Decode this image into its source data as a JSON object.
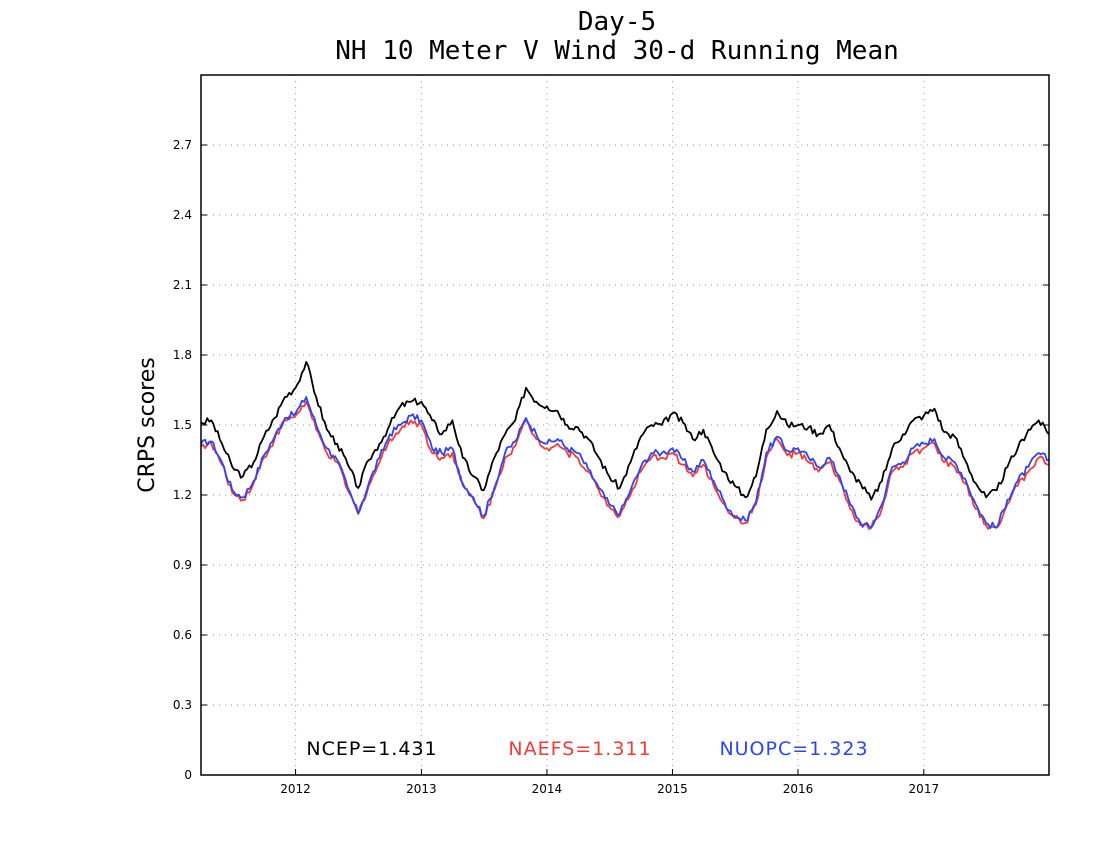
{
  "chart_data": {
    "type": "line",
    "title_line1": "Day-5",
    "title_line2": "NH 10 Meter V Wind 30-d Running Mean",
    "ylabel": "CRPS scores",
    "xlabel": "",
    "xlim": [
      "2011-04-01",
      "2017-12-31"
    ],
    "ylim": [
      0,
      3.0
    ],
    "yticks": [
      "0",
      "0.3",
      "0.6",
      "0.9",
      "1.2",
      "1.5",
      "1.8",
      "2.1",
      "2.4",
      "2.7"
    ],
    "ytick_values": [
      0,
      0.3,
      0.6,
      0.9,
      1.2,
      1.5,
      1.8,
      2.1,
      2.4,
      2.7
    ],
    "xticks": [
      "2012",
      "2013",
      "2014",
      "2015",
      "2016",
      "2017"
    ],
    "xtick_dates": [
      "2012-01-01",
      "2013-01-01",
      "2014-01-01",
      "2015-01-01",
      "2016-01-01",
      "2017-01-01"
    ],
    "grid": true,
    "legend_position": "bottom-inside",
    "series": [
      {
        "name": "NCEP",
        "label": "NCEP=1.431",
        "color": "#000000",
        "x": [
          "2011-04-01",
          "2011-05-01",
          "2011-06-01",
          "2011-07-01",
          "2011-08-01",
          "2011-09-01",
          "2011-10-01",
          "2011-11-01",
          "2011-12-01",
          "2012-01-01",
          "2012-02-01",
          "2012-03-01",
          "2012-04-01",
          "2012-05-01",
          "2012-06-01",
          "2012-07-01",
          "2012-08-01",
          "2012-09-01",
          "2012-10-01",
          "2012-11-01",
          "2012-12-01",
          "2013-01-01",
          "2013-02-01",
          "2013-03-01",
          "2013-04-01",
          "2013-05-01",
          "2013-06-01",
          "2013-07-01",
          "2013-08-01",
          "2013-09-01",
          "2013-10-01",
          "2013-11-01",
          "2013-12-01",
          "2014-01-01",
          "2014-02-01",
          "2014-03-01",
          "2014-04-01",
          "2014-05-01",
          "2014-06-01",
          "2014-07-01",
          "2014-08-01",
          "2014-09-01",
          "2014-10-01",
          "2014-11-01",
          "2014-12-01",
          "2015-01-01",
          "2015-02-01",
          "2015-03-01",
          "2015-04-01",
          "2015-05-01",
          "2015-06-01",
          "2015-07-01",
          "2015-08-01",
          "2015-09-01",
          "2015-10-01",
          "2015-11-01",
          "2015-12-01",
          "2016-01-01",
          "2016-02-01",
          "2016-03-01",
          "2016-04-01",
          "2016-05-01",
          "2016-06-01",
          "2016-07-01",
          "2016-08-01",
          "2016-09-01",
          "2016-10-01",
          "2016-11-01",
          "2016-12-01",
          "2017-01-01",
          "2017-02-01",
          "2017-03-01",
          "2017-04-01",
          "2017-05-01",
          "2017-06-01",
          "2017-07-01",
          "2017-08-01",
          "2017-09-01",
          "2017-10-01",
          "2017-11-01",
          "2017-12-01",
          "2017-12-31"
        ],
        "values": [
          1.51,
          1.52,
          1.42,
          1.32,
          1.28,
          1.34,
          1.45,
          1.53,
          1.62,
          1.66,
          1.77,
          1.62,
          1.48,
          1.42,
          1.33,
          1.23,
          1.35,
          1.42,
          1.5,
          1.58,
          1.6,
          1.6,
          1.52,
          1.46,
          1.52,
          1.36,
          1.28,
          1.22,
          1.36,
          1.46,
          1.52,
          1.66,
          1.6,
          1.58,
          1.56,
          1.5,
          1.49,
          1.44,
          1.36,
          1.28,
          1.23,
          1.34,
          1.45,
          1.5,
          1.5,
          1.55,
          1.51,
          1.44,
          1.48,
          1.38,
          1.3,
          1.24,
          1.19,
          1.28,
          1.48,
          1.56,
          1.5,
          1.5,
          1.49,
          1.46,
          1.5,
          1.4,
          1.3,
          1.25,
          1.18,
          1.26,
          1.4,
          1.46,
          1.52,
          1.54,
          1.57,
          1.47,
          1.45,
          1.35,
          1.25,
          1.19,
          1.22,
          1.32,
          1.4,
          1.48,
          1.52,
          1.46
        ]
      },
      {
        "name": "NAEFS",
        "label": "NAEFS=1.311",
        "color": "#f03c3c",
        "x": [
          "2011-04-01",
          "2011-05-01",
          "2011-06-01",
          "2011-07-01",
          "2011-08-01",
          "2011-09-01",
          "2011-10-01",
          "2011-11-01",
          "2011-12-01",
          "2012-01-01",
          "2012-02-01",
          "2012-03-01",
          "2012-04-01",
          "2012-05-01",
          "2012-06-01",
          "2012-07-01",
          "2012-08-01",
          "2012-09-01",
          "2012-10-01",
          "2012-11-01",
          "2012-12-01",
          "2013-01-01",
          "2013-02-01",
          "2013-03-01",
          "2013-04-01",
          "2013-05-01",
          "2013-06-01",
          "2013-07-01",
          "2013-08-01",
          "2013-09-01",
          "2013-10-01",
          "2013-11-01",
          "2013-12-01",
          "2014-01-01",
          "2014-02-01",
          "2014-03-01",
          "2014-04-01",
          "2014-05-01",
          "2014-06-01",
          "2014-07-01",
          "2014-08-01",
          "2014-09-01",
          "2014-10-01",
          "2014-11-01",
          "2014-12-01",
          "2015-01-01",
          "2015-02-01",
          "2015-03-01",
          "2015-04-01",
          "2015-05-01",
          "2015-06-01",
          "2015-07-01",
          "2015-08-01",
          "2015-09-01",
          "2015-10-01",
          "2015-11-01",
          "2015-12-01",
          "2016-01-01",
          "2016-02-01",
          "2016-03-01",
          "2016-04-01",
          "2016-05-01",
          "2016-06-01",
          "2016-07-01",
          "2016-08-01",
          "2016-09-01",
          "2016-10-01",
          "2016-11-01",
          "2016-12-01",
          "2017-01-01",
          "2017-02-01",
          "2017-03-01",
          "2017-04-01",
          "2017-05-01",
          "2017-06-01",
          "2017-07-01",
          "2017-08-01",
          "2017-09-01",
          "2017-10-01",
          "2017-11-01",
          "2017-12-01",
          "2017-12-31"
        ],
        "values": [
          1.41,
          1.42,
          1.33,
          1.21,
          1.18,
          1.25,
          1.36,
          1.44,
          1.52,
          1.54,
          1.6,
          1.48,
          1.38,
          1.34,
          1.22,
          1.12,
          1.24,
          1.34,
          1.44,
          1.48,
          1.52,
          1.5,
          1.38,
          1.36,
          1.38,
          1.24,
          1.18,
          1.1,
          1.22,
          1.36,
          1.41,
          1.52,
          1.44,
          1.4,
          1.42,
          1.38,
          1.36,
          1.3,
          1.22,
          1.15,
          1.11,
          1.2,
          1.3,
          1.36,
          1.36,
          1.38,
          1.33,
          1.28,
          1.33,
          1.24,
          1.16,
          1.1,
          1.08,
          1.16,
          1.36,
          1.44,
          1.37,
          1.38,
          1.34,
          1.3,
          1.34,
          1.26,
          1.14,
          1.07,
          1.06,
          1.14,
          1.3,
          1.32,
          1.38,
          1.4,
          1.42,
          1.34,
          1.32,
          1.25,
          1.14,
          1.07,
          1.06,
          1.16,
          1.24,
          1.3,
          1.36,
          1.33
        ]
      },
      {
        "name": "NUOPC",
        "label": "NUOPC=1.323",
        "color": "#2d46f0",
        "x": [
          "2011-04-01",
          "2011-05-01",
          "2011-06-01",
          "2011-07-01",
          "2011-08-01",
          "2011-09-01",
          "2011-10-01",
          "2011-11-01",
          "2011-12-01",
          "2012-01-01",
          "2012-02-01",
          "2012-03-01",
          "2012-04-01",
          "2012-05-01",
          "2012-06-01",
          "2012-07-01",
          "2012-08-01",
          "2012-09-01",
          "2012-10-01",
          "2012-11-01",
          "2012-12-01",
          "2013-01-01",
          "2013-02-01",
          "2013-03-01",
          "2013-04-01",
          "2013-05-01",
          "2013-06-01",
          "2013-07-01",
          "2013-08-01",
          "2013-09-01",
          "2013-10-01",
          "2013-11-01",
          "2013-12-01",
          "2014-01-01",
          "2014-02-01",
          "2014-03-01",
          "2014-04-01",
          "2014-05-01",
          "2014-06-01",
          "2014-07-01",
          "2014-08-01",
          "2014-09-01",
          "2014-10-01",
          "2014-11-01",
          "2014-12-01",
          "2015-01-01",
          "2015-02-01",
          "2015-03-01",
          "2015-04-01",
          "2015-05-01",
          "2015-06-01",
          "2015-07-01",
          "2015-08-01",
          "2015-09-01",
          "2015-10-01",
          "2015-11-01",
          "2015-12-01",
          "2016-01-01",
          "2016-02-01",
          "2016-03-01",
          "2016-04-01",
          "2016-05-01",
          "2016-06-01",
          "2016-07-01",
          "2016-08-01",
          "2016-09-01",
          "2016-10-01",
          "2016-11-01",
          "2016-12-01",
          "2017-01-01",
          "2017-02-01",
          "2017-03-01",
          "2017-04-01",
          "2017-05-01",
          "2017-06-01",
          "2017-07-01",
          "2017-08-01",
          "2017-09-01",
          "2017-10-01",
          "2017-11-01",
          "2017-12-01",
          "2017-12-31"
        ],
        "values": [
          1.42,
          1.43,
          1.34,
          1.22,
          1.19,
          1.26,
          1.37,
          1.45,
          1.53,
          1.55,
          1.62,
          1.5,
          1.4,
          1.35,
          1.23,
          1.12,
          1.25,
          1.36,
          1.46,
          1.5,
          1.54,
          1.52,
          1.4,
          1.38,
          1.4,
          1.25,
          1.19,
          1.11,
          1.23,
          1.38,
          1.43,
          1.53,
          1.46,
          1.42,
          1.44,
          1.4,
          1.38,
          1.31,
          1.23,
          1.16,
          1.12,
          1.22,
          1.32,
          1.38,
          1.38,
          1.4,
          1.35,
          1.3,
          1.35,
          1.26,
          1.17,
          1.11,
          1.09,
          1.17,
          1.38,
          1.45,
          1.39,
          1.4,
          1.36,
          1.32,
          1.36,
          1.28,
          1.16,
          1.08,
          1.06,
          1.16,
          1.32,
          1.34,
          1.4,
          1.42,
          1.44,
          1.36,
          1.34,
          1.27,
          1.16,
          1.08,
          1.06,
          1.18,
          1.26,
          1.32,
          1.38,
          1.35
        ]
      }
    ]
  }
}
